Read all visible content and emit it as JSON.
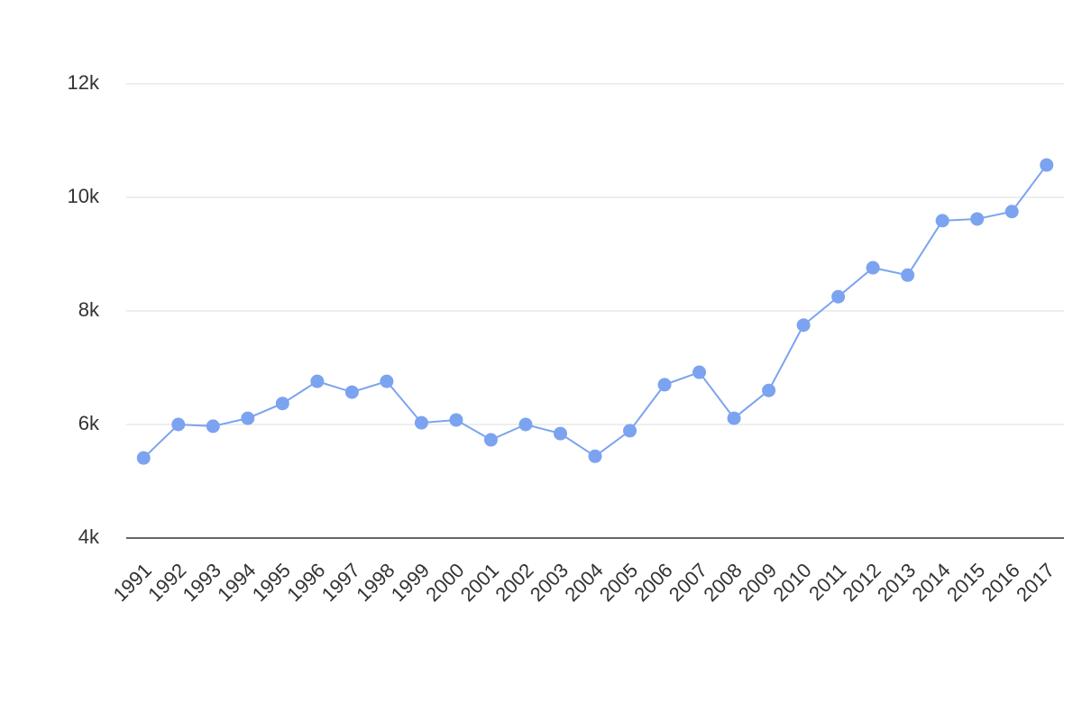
{
  "chart_data": {
    "type": "line",
    "categories": [
      "1991",
      "1992",
      "1993",
      "1994",
      "1995",
      "1996",
      "1997",
      "1998",
      "1999",
      "2000",
      "2001",
      "2002",
      "2003",
      "2004",
      "2005",
      "2006",
      "2007",
      "2008",
      "2009",
      "2010",
      "2011",
      "2012",
      "2013",
      "2014",
      "2015",
      "2016",
      "2017"
    ],
    "values": [
      5410,
      6000,
      5970,
      6110,
      6370,
      6760,
      6570,
      6760,
      6030,
      6080,
      5730,
      6000,
      5840,
      5440,
      5890,
      6700,
      6920,
      6110,
      6600,
      7750,
      8250,
      8760,
      8630,
      9590,
      9620,
      9750,
      10570
    ],
    "color": "#7ba3f0",
    "ylim": [
      4000,
      12000
    ],
    "yticks": [
      {
        "value": 4000,
        "label": "4k"
      },
      {
        "value": 6000,
        "label": "6k"
      },
      {
        "value": 8000,
        "label": "8k"
      },
      {
        "value": 10000,
        "label": "10k"
      },
      {
        "value": 12000,
        "label": "12k"
      }
    ],
    "grid": true
  }
}
